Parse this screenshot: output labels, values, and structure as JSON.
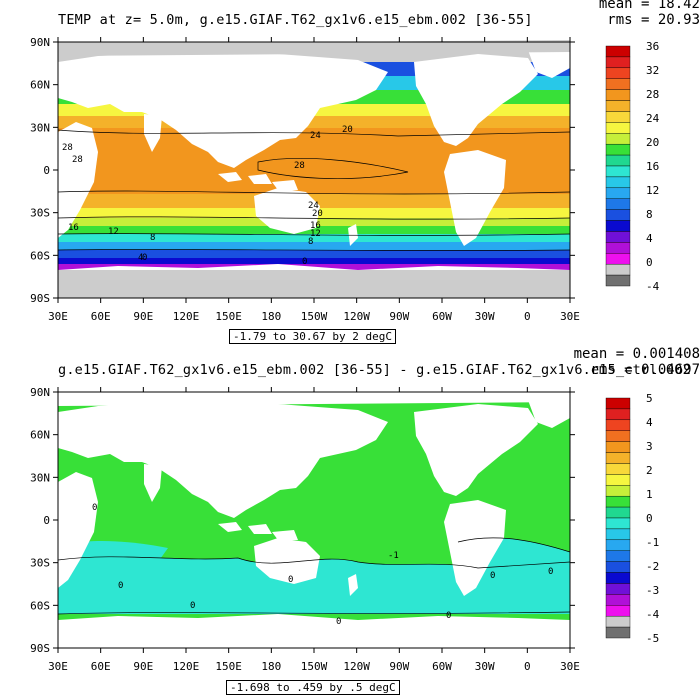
{
  "panels": [
    {
      "id": "top",
      "title": "TEMP at z=    5.0m, g.e15.GIAF.T62_gx1v6.e15_ebm.002 [36-55]",
      "mean_text": "mean = 18.42",
      "rms_text": "rms = 20.93",
      "range_text": "-1.79 to 30.67 by 2 degC",
      "lat_labels": [
        "90N",
        "60N",
        "30N",
        "0",
        "30S",
        "60S",
        "90S"
      ],
      "lon_labels": [
        "30E",
        "60E",
        "90E",
        "120E",
        "150E",
        "180",
        "150W",
        "120W",
        "90W",
        "60W",
        "30W",
        "0",
        "30E"
      ],
      "colorbar": {
        "labels": [
          "36",
          "32",
          "28",
          "24",
          "20",
          "16",
          "12",
          "8",
          "4",
          "0",
          "-4"
        ],
        "colors": [
          "#cc0000",
          "#e02020",
          "#ee4420",
          "#f07020",
          "#f2961e",
          "#f4b22a",
          "#f8d83a",
          "#f6f640",
          "#c6ef3a",
          "#38e038",
          "#20d890",
          "#2ee6d2",
          "#28c8e8",
          "#28a8f0",
          "#1e78e8",
          "#1a50e0",
          "#0a0ad0",
          "#7010d8",
          "#b010d8",
          "#ee10ee",
          "#cccccc",
          "#707070"
        ]
      },
      "contour_labels": [
        "28",
        "24",
        "20",
        "28",
        "24",
        "20",
        "16",
        "12",
        "8",
        "4",
        "0",
        "16",
        "12",
        "8",
        "0",
        "28"
      ]
    },
    {
      "id": "bottom",
      "title": "g.e15.GIAF.T62_gx1v6.e15_ebm.002 [36-55] - g.e15.GIAF.T62_gx1v6.e15_ctrl.002",
      "mean_text": "mean = 0.001408",
      "rms_text": "rms = 0.04697",
      "range_text": "-1.698 to .459 by .5 degC",
      "lat_labels": [
        "90N",
        "60N",
        "30N",
        "0",
        "30S",
        "60S",
        "90S"
      ],
      "lon_labels": [
        "30E",
        "60E",
        "90E",
        "120E",
        "150E",
        "180",
        "150W",
        "120W",
        "90W",
        "60W",
        "30W",
        "0",
        "30E"
      ],
      "colorbar": {
        "labels": [
          "5",
          "4",
          "3",
          "2",
          "1",
          "0",
          "-1",
          "-2",
          "-3",
          "-4",
          "-5"
        ],
        "colors": [
          "#cc0000",
          "#e02020",
          "#ee4420",
          "#f07020",
          "#f2961e",
          "#f4b22a",
          "#f8d83a",
          "#f6f640",
          "#c6ef3a",
          "#38e038",
          "#20d890",
          "#2ee6d2",
          "#28c8e8",
          "#28a8f0",
          "#1e78e8",
          "#1a50e0",
          "#0a0ad0",
          "#7010d8",
          "#b010d8",
          "#ee10ee",
          "#cccccc",
          "#707070"
        ]
      },
      "contour_labels": [
        "0",
        "0",
        "0",
        "0",
        "0",
        "-1",
        "0",
        "0",
        "0"
      ]
    }
  ]
}
